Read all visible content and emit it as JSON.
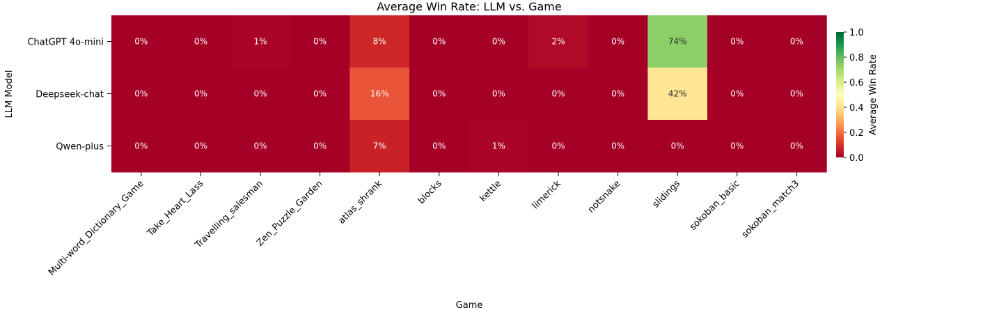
{
  "chart_data": {
    "type": "heatmap",
    "title": "Average Win Rate: LLM vs. Game",
    "xlabel": "Game",
    "ylabel": "LLM Model",
    "colorbar_label": "Average Win Rate",
    "colormap": "RdYlGn",
    "vmin": 0.0,
    "vmax": 1.0,
    "colorbar_ticks": [
      "0.0",
      "0.2",
      "0.4",
      "0.6",
      "0.8",
      "1.0"
    ],
    "rows": [
      "ChatGPT 4o-mini",
      "Deepseek-chat",
      "Qwen-plus"
    ],
    "columns": [
      "Multi-word_Dictionary_Game",
      "Take_Heart_Lass",
      "Travelling_salesman",
      "Zen_Puzzle_Garden",
      "atlas_shrank",
      "blocks",
      "kettle",
      "limerick",
      "notsnake",
      "slidings",
      "sokoban_basic",
      "sokoban_match3"
    ],
    "values": [
      [
        0.0,
        0.0,
        0.01,
        0.0,
        0.08,
        0.0,
        0.0,
        0.02,
        0.0,
        0.74,
        0.0,
        0.0
      ],
      [
        0.0,
        0.0,
        0.0,
        0.0,
        0.16,
        0.0,
        0.0,
        0.0,
        0.0,
        0.42,
        0.0,
        0.0
      ],
      [
        0.0,
        0.0,
        0.0,
        0.0,
        0.07,
        0.0,
        0.01,
        0.0,
        0.0,
        0.0,
        0.0,
        0.0
      ]
    ],
    "labels": [
      [
        "0%",
        "0%",
        "1%",
        "0%",
        "8%",
        "0%",
        "0%",
        "2%",
        "0%",
        "74%",
        "0%",
        "0%"
      ],
      [
        "0%",
        "0%",
        "0%",
        "0%",
        "16%",
        "0%",
        "0%",
        "0%",
        "0%",
        "42%",
        "0%",
        "0%"
      ],
      [
        "0%",
        "0%",
        "0%",
        "0%",
        "7%",
        "0%",
        "1%",
        "0%",
        "0%",
        "0%",
        "0%",
        "0%"
      ]
    ]
  }
}
